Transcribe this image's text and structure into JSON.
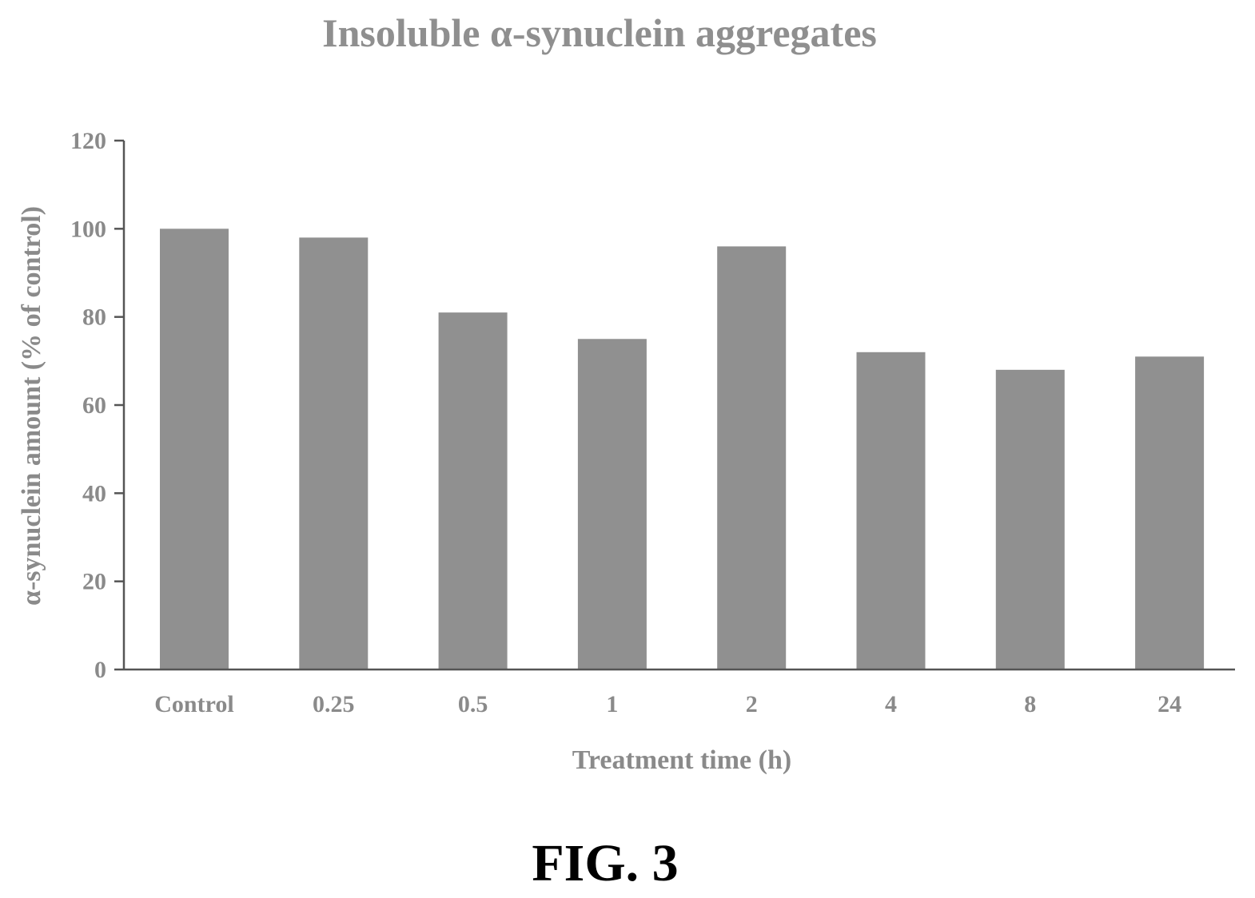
{
  "figure_label": "FIG. 3",
  "chart_data": {
    "type": "bar",
    "title": "Insoluble α-synuclein aggregates",
    "xlabel": "Treatment time (h)",
    "ylabel": "α-synuclein amount (% of control)",
    "categories": [
      "Control",
      "0.25",
      "0.5",
      "1",
      "2",
      "4",
      "8",
      "24"
    ],
    "values": [
      100,
      98,
      81,
      75,
      96,
      72,
      68,
      71
    ],
    "ylim": [
      0,
      120
    ],
    "yticks": [
      0,
      20,
      40,
      60,
      80,
      100,
      120
    ],
    "grid": false,
    "legend": "none",
    "colors": {
      "bar": "#909090",
      "text": "#8a8a8a",
      "axis": "#555555"
    }
  }
}
